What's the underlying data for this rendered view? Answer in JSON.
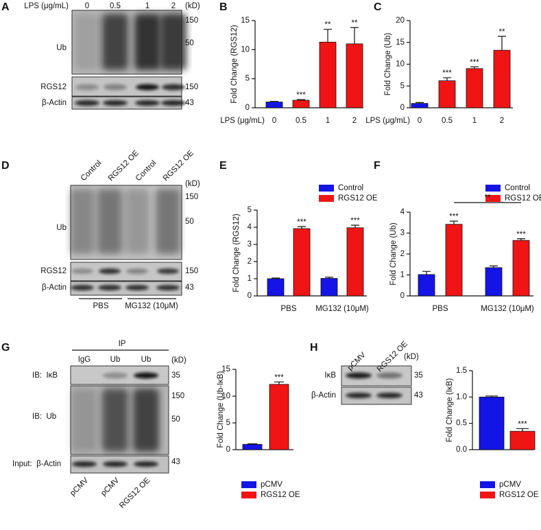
{
  "panel_labels": [
    "A",
    "B",
    "C",
    "D",
    "E",
    "F",
    "G",
    "H"
  ],
  "blots": [
    {
      "header": "LPS (μg/mL)",
      "lanes": [
        "0",
        "0.5",
        "1",
        "2"
      ],
      "kd": "(kD)",
      "rows": [
        "Ub",
        "RGS12",
        "β-Actin"
      ],
      "markers": [
        "150",
        "50",
        "150",
        "43"
      ]
    },
    {
      "lanes": [
        "Control",
        "RGS12 OE",
        "Control",
        "RGS12 OE"
      ],
      "kd": "(kD)",
      "rows": [
        "Ub",
        "RGS12",
        "β-Actin"
      ],
      "markers": [
        "150",
        "50",
        "150",
        "43"
      ],
      "groups": [
        "PBS",
        "MG132 (10μM)"
      ]
    },
    {
      "header": "IP",
      "lanes": [
        "IgG",
        "Ub",
        "Ub"
      ],
      "kd": "(kD)",
      "rows": [
        "IB:  IκB",
        "IB:  Ub",
        "Input:  β-Actin"
      ],
      "markers": [
        "35",
        "150",
        "50",
        "43"
      ],
      "bottom_lanes": [
        "pCMV",
        "pCMV",
        "RGS12 OE"
      ]
    },
    {
      "lanes": [
        "pCMV",
        "RGS12 OE"
      ],
      "kd": "(kD)",
      "rows": [
        "IκB",
        "β-Actin"
      ],
      "markers": [
        "35",
        "43"
      ]
    }
  ],
  "chart_data": [
    {
      "type": "bar",
      "ylabel": "Fold Change (RGS12)",
      "xlabel": "LPS (μg/mL)",
      "categories": [
        "0",
        "0.5",
        "1",
        "2"
      ],
      "values": [
        1.0,
        1.3,
        11.3,
        11.0
      ],
      "errors": [
        0.1,
        0.1,
        2.2,
        2.8
      ],
      "colors": [
        "#1414e6",
        "#f01414",
        "#f01414",
        "#f01414"
      ],
      "significance": [
        null,
        "***",
        "**",
        "**"
      ],
      "ylim": [
        0,
        15
      ],
      "yticks": [
        0,
        5,
        10,
        15
      ]
    },
    {
      "type": "bar",
      "ylabel": "Fold Change (Ub)",
      "xlabel": "LPS (μg/mL)",
      "categories": [
        "0",
        "0.5",
        "1",
        "2"
      ],
      "values": [
        1.0,
        6.2,
        9.0,
        13.2
      ],
      "errors": [
        0.2,
        0.7,
        0.4,
        3.2
      ],
      "colors": [
        "#1414e6",
        "#f01414",
        "#f01414",
        "#f01414"
      ],
      "significance": [
        null,
        "***",
        "***",
        "**"
      ],
      "ylim": [
        0,
        20
      ],
      "yticks": [
        0,
        5,
        10,
        15,
        20
      ]
    },
    {
      "type": "grouped_bar",
      "ylabel": "Fold Change (RGS12)",
      "categories": [
        "PBS",
        "MG132 (10μM)"
      ],
      "series": [
        {
          "name": "Control",
          "color": "#1414e6",
          "values": [
            1.0,
            1.02
          ],
          "errors": [
            0.04,
            0.07
          ]
        },
        {
          "name": "RGS12 OE",
          "color": "#f01414",
          "values": [
            3.92,
            3.97
          ],
          "errors": [
            0.12,
            0.15
          ],
          "significance": [
            "***",
            "***"
          ]
        }
      ],
      "ylim": [
        0,
        5
      ],
      "yticks": [
        0,
        1,
        2,
        3,
        4,
        5
      ],
      "legend": "top"
    },
    {
      "type": "grouped_bar",
      "ylabel": "Fold Change (Ub)",
      "categories": [
        "PBS",
        "MG132 (10μM)"
      ],
      "series": [
        {
          "name": "Control",
          "color": "#1414e6",
          "values": [
            1.02,
            1.35
          ],
          "errors": [
            0.15,
            0.08
          ]
        },
        {
          "name": "RGS12 OE",
          "color": "#f01414",
          "values": [
            3.42,
            2.65
          ],
          "errors": [
            0.15,
            0.08
          ],
          "significance": [
            "***",
            "***"
          ]
        }
      ],
      "bracket_label": "**",
      "ylim": [
        0,
        4
      ],
      "yticks": [
        0,
        1,
        2,
        3,
        4
      ],
      "legend": "top"
    },
    {
      "type": "bar",
      "ylabel": "Fold Change (Ub-IκB)",
      "categories": [
        "pCMV",
        "RGS12 OE"
      ],
      "values": [
        1.0,
        12.2
      ],
      "errors": [
        0.1,
        0.45
      ],
      "colors": [
        "#1414e6",
        "#f01414"
      ],
      "significance": [
        null,
        "***"
      ],
      "ylim": [
        0,
        15
      ],
      "yticks": [
        0,
        5,
        10,
        15
      ],
      "legend": "bottom"
    },
    {
      "type": "bar",
      "ylabel": "Fold Change (IκB)",
      "categories": [
        "pCMV",
        "RGS12 OE"
      ],
      "values": [
        1.0,
        0.35
      ],
      "errors": [
        0.02,
        0.05
      ],
      "colors": [
        "#1414e6",
        "#f01414"
      ],
      "significance": [
        null,
        "***"
      ],
      "ylim": [
        0,
        1.5
      ],
      "yticks": [
        {
          "value": 0,
          "label": "0.0"
        },
        {
          "value": 0.5,
          "label": "0.5"
        },
        {
          "value": 1,
          "label": "1.0"
        },
        {
          "value": 1.5,
          "label": "1.5"
        }
      ],
      "legend": "bottom"
    }
  ]
}
